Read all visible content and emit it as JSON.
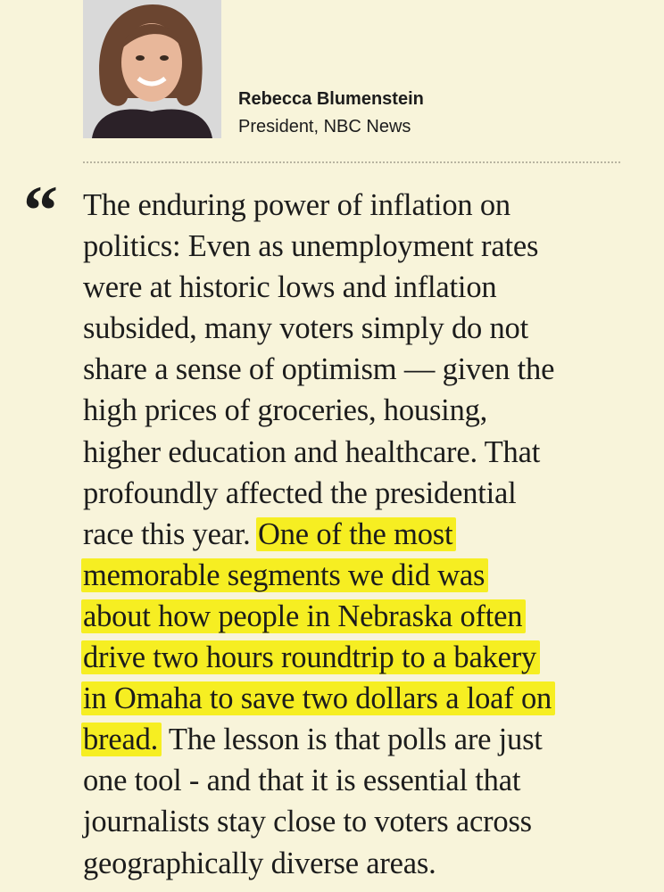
{
  "profile": {
    "name": "Rebecca Blumenstein",
    "role": "President, NBC News"
  },
  "quote": {
    "mark": "“",
    "lines": [
      [
        {
          "text": "The enduring power of inflation on",
          "highlighted": false
        }
      ],
      [
        {
          "text": "politics: Even as unemployment rates",
          "highlighted": false
        }
      ],
      [
        {
          "text": "were at historic lows and inflation",
          "highlighted": false
        }
      ],
      [
        {
          "text": "subsided, many voters simply do not",
          "highlighted": false
        }
      ],
      [
        {
          "text": "share a sense of optimism — given the",
          "highlighted": false
        }
      ],
      [
        {
          "text": "high prices of groceries, housing,",
          "highlighted": false
        }
      ],
      [
        {
          "text": "higher education and healthcare. That",
          "highlighted": false
        }
      ],
      [
        {
          "text": "profoundly affected the presidential",
          "highlighted": false
        }
      ],
      [
        {
          "text": "race this year. ",
          "highlighted": false
        },
        {
          "text": "One of the most",
          "highlighted": true
        }
      ],
      [
        {
          "text": "memorable segments we did was",
          "highlighted": true
        }
      ],
      [
        {
          "text": "about how people in Nebraska often",
          "highlighted": true
        }
      ],
      [
        {
          "text": "drive two hours roundtrip to a bakery",
          "highlighted": true
        }
      ],
      [
        {
          "text": "in Omaha to save two dollars a loaf on",
          "highlighted": true
        }
      ],
      [
        {
          "text": "bread.",
          "highlighted": true
        },
        {
          "text": " The lesson is that polls are just",
          "highlighted": false
        }
      ],
      [
        {
          "text": "one tool - and that it is essential that",
          "highlighted": false
        }
      ],
      [
        {
          "text": "journalists stay close to voters across",
          "highlighted": false
        }
      ],
      [
        {
          "text": "geographically diverse areas.",
          "highlighted": false
        }
      ]
    ]
  }
}
